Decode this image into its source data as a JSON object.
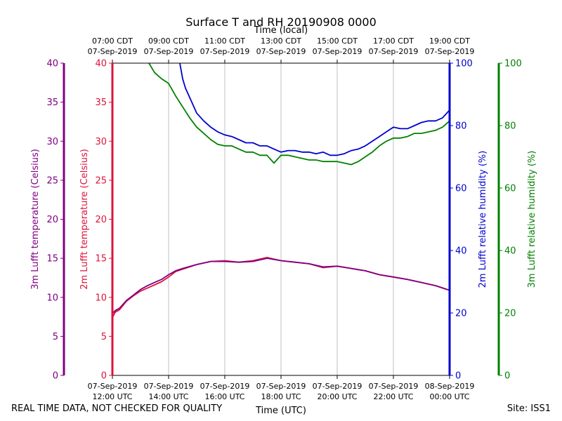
{
  "chart_data": {
    "type": "line",
    "title": "Surface T and RH 20190908 0000",
    "top_axis_title": "Time (local)",
    "xlabel": "Time (UTC)",
    "x_range_hours_utc": [
      12,
      24
    ],
    "bottom_ticks": [
      {
        "hour": 12,
        "line1": "07-Sep-2019",
        "line2": "12:00 UTC"
      },
      {
        "hour": 14,
        "line1": "07-Sep-2019",
        "line2": "14:00 UTC"
      },
      {
        "hour": 16,
        "line1": "07-Sep-2019",
        "line2": "16:00 UTC"
      },
      {
        "hour": 18,
        "line1": "07-Sep-2019",
        "line2": "18:00 UTC"
      },
      {
        "hour": 20,
        "line1": "07-Sep-2019",
        "line2": "20:00 UTC"
      },
      {
        "hour": 22,
        "line1": "07-Sep-2019",
        "line2": "22:00 UTC"
      },
      {
        "hour": 24,
        "line1": "08-Sep-2019",
        "line2": "00:00 UTC"
      }
    ],
    "top_ticks": [
      {
        "hour": 12,
        "line1": "07:00 CDT",
        "line2": "07-Sep-2019"
      },
      {
        "hour": 14,
        "line1": "09:00 CDT",
        "line2": "07-Sep-2019"
      },
      {
        "hour": 16,
        "line1": "11:00 CDT",
        "line2": "07-Sep-2019"
      },
      {
        "hour": 18,
        "line1": "13:00 CDT",
        "line2": "07-Sep-2019"
      },
      {
        "hour": 20,
        "line1": "15:00 CDT",
        "line2": "07-Sep-2019"
      },
      {
        "hour": 22,
        "line1": "17:00 CDT",
        "line2": "07-Sep-2019"
      },
      {
        "hour": 24,
        "line1": "19:00 CDT",
        "line2": "07-Sep-2019"
      }
    ],
    "y_axes": [
      {
        "id": "t3m",
        "label": "3m Lufft temperature (Celsius)",
        "color": "#800080",
        "range": [
          0,
          40
        ],
        "ticks": [
          0,
          5,
          10,
          15,
          20,
          25,
          30,
          35,
          40
        ]
      },
      {
        "id": "t2m",
        "label": "2m Lufft temperature (Celsius)",
        "color": "#dc143c",
        "range": [
          0,
          40
        ],
        "ticks": [
          0,
          5,
          10,
          15,
          20,
          25,
          30,
          35,
          40
        ]
      },
      {
        "id": "rh2m",
        "label": "2m Lufft relative humidity (%)",
        "color": "#0000cd",
        "range": [
          0,
          100
        ],
        "ticks": [
          0,
          20,
          40,
          60,
          80,
          100
        ]
      },
      {
        "id": "rh3m",
        "label": "3m Lufft relative humidity (%)",
        "color": "#008000",
        "range": [
          0,
          100
        ],
        "ticks": [
          0,
          20,
          40,
          60,
          80,
          100
        ]
      }
    ],
    "grid": "vertical",
    "series": [
      {
        "name": "2m Lufft temperature",
        "axis": "t2m",
        "color": "#dc143c",
        "x": [
          12.0,
          12.1,
          12.25,
          12.5,
          12.75,
          13.0,
          13.25,
          13.5,
          13.75,
          14.0,
          14.25,
          14.5,
          15.0,
          15.5,
          16.0,
          16.5,
          17.0,
          17.5,
          18.0,
          18.5,
          19.0,
          19.5,
          20.0,
          20.5,
          21.0,
          21.5,
          22.0,
          22.5,
          23.0,
          23.5,
          24.0
        ],
        "y": [
          7.4,
          8.1,
          8.4,
          9.5,
          10.2,
          10.8,
          11.2,
          11.6,
          12.0,
          12.6,
          13.3,
          13.6,
          14.2,
          14.6,
          14.7,
          14.5,
          14.7,
          15.1,
          14.7,
          14.5,
          14.3,
          13.8,
          14.0,
          13.7,
          13.4,
          12.9,
          12.6,
          12.3,
          11.9,
          11.5,
          10.9
        ]
      },
      {
        "name": "3m Lufft temperature",
        "axis": "t3m",
        "color": "#800080",
        "x": [
          12.0,
          12.1,
          12.25,
          12.5,
          12.75,
          13.0,
          13.25,
          13.5,
          13.75,
          14.0,
          14.25,
          14.5,
          15.0,
          15.5,
          16.0,
          16.5,
          17.0,
          17.5,
          18.0,
          18.5,
          19.0,
          19.5,
          20.0,
          20.5,
          21.0,
          21.5,
          22.0,
          22.5,
          23.0,
          23.5,
          24.0
        ],
        "y": [
          7.9,
          8.3,
          8.6,
          9.6,
          10.3,
          11.0,
          11.5,
          11.9,
          12.3,
          12.9,
          13.4,
          13.7,
          14.2,
          14.6,
          14.6,
          14.5,
          14.6,
          15.0,
          14.7,
          14.5,
          14.3,
          13.9,
          14.0,
          13.7,
          13.4,
          12.9,
          12.6,
          12.3,
          11.9,
          11.5,
          10.9
        ]
      },
      {
        "name": "2m Lufft relative humidity",
        "axis": "rh2m",
        "color": "#0000cd",
        "x": [
          14.4,
          14.5,
          14.6,
          14.75,
          15.0,
          15.25,
          15.5,
          15.75,
          16.0,
          16.25,
          16.5,
          16.75,
          17.0,
          17.25,
          17.5,
          17.75,
          18.0,
          18.25,
          18.5,
          18.75,
          19.0,
          19.25,
          19.5,
          19.75,
          20.0,
          20.25,
          20.5,
          20.75,
          21.0,
          21.25,
          21.5,
          21.75,
          22.0,
          22.25,
          22.5,
          22.75,
          23.0,
          23.25,
          23.5,
          23.75,
          24.0
        ],
        "y": [
          100,
          95,
          92,
          89,
          84,
          81.5,
          79.5,
          78,
          77,
          76.5,
          75.5,
          74.5,
          74.5,
          73.5,
          73.5,
          72.5,
          71.5,
          72,
          72,
          71.5,
          71.5,
          71,
          71.5,
          70.5,
          70.5,
          71,
          72,
          72.5,
          73.5,
          75,
          76.5,
          78,
          79.5,
          79,
          79,
          80,
          81,
          81.5,
          81.5,
          82.5,
          85
        ]
      },
      {
        "name": "3m Lufft relative humidity",
        "axis": "rh3m",
        "color": "#008000",
        "x": [
          13.3,
          13.5,
          13.75,
          14.0,
          14.25,
          14.5,
          14.75,
          15.0,
          15.25,
          15.5,
          15.75,
          16.0,
          16.25,
          16.5,
          16.75,
          17.0,
          17.25,
          17.5,
          17.75,
          18.0,
          18.25,
          18.5,
          18.75,
          19.0,
          19.25,
          19.5,
          19.75,
          20.0,
          20.25,
          20.5,
          20.75,
          21.0,
          21.25,
          21.5,
          21.75,
          22.0,
          22.25,
          22.5,
          22.75,
          23.0,
          23.25,
          23.5,
          23.75,
          24.0
        ],
        "y": [
          100,
          97,
          95,
          93.5,
          89.5,
          86,
          82.5,
          79.5,
          77.5,
          75.5,
          74,
          73.5,
          73.5,
          72.5,
          71.5,
          71.5,
          70.5,
          70.5,
          68,
          70.5,
          70.5,
          70,
          69.5,
          69,
          69,
          68.5,
          68.5,
          68.5,
          68,
          67.5,
          68.5,
          70,
          71.5,
          73.5,
          75,
          76,
          76,
          76.5,
          77.5,
          77.5,
          78,
          78.5,
          79.5,
          81.5
        ]
      }
    ]
  },
  "footer": {
    "disclaimer": "REAL TIME DATA, NOT CHECKED FOR QUALITY",
    "site": "Site: ISS1"
  }
}
